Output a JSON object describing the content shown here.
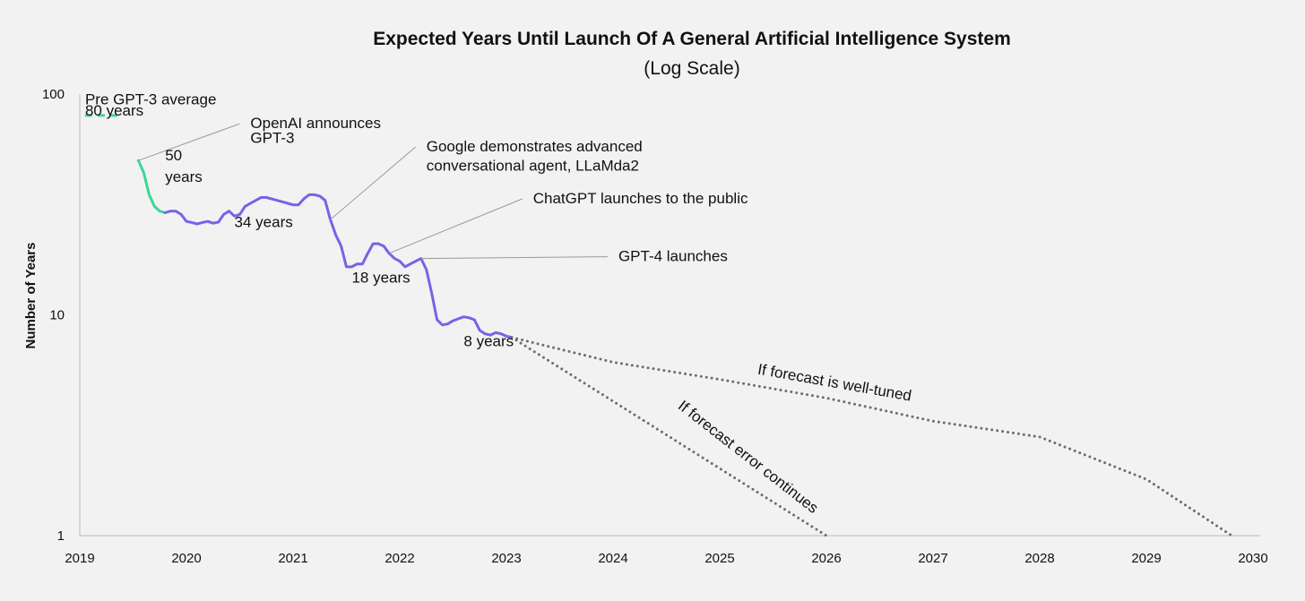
{
  "chart_data": {
    "type": "line",
    "title": "Expected Years Until Launch Of A General Artificial Intelligence System",
    "subtitle": "(Log Scale)",
    "ylabel": "Number of Years",
    "xlabel": "",
    "xlim": [
      2019,
      2030
    ],
    "ylim": [
      1,
      100
    ],
    "y_scale": "log",
    "grid": false,
    "x_ticks": [
      "2019",
      "2020",
      "2021",
      "2022",
      "2023",
      "2024",
      "2025",
      "2026",
      "2027",
      "2028",
      "2029",
      "2030"
    ],
    "y_ticks": [
      "1",
      "10",
      "100"
    ],
    "colors": {
      "pre_gpt3": "#3ed598",
      "forecast": "#7b61e6",
      "projection": "#6b6b75",
      "axis": "#bbbbbb",
      "leader": "#999999",
      "text": "#111111"
    },
    "series": [
      {
        "key": "pre_gpt3_average",
        "style": "dashed",
        "points": [
          [
            2019.05,
            80
          ],
          [
            2019.38,
            80
          ]
        ]
      },
      {
        "key": "after_gpt3_announcement",
        "style": "solid",
        "points": [
          [
            2019.55,
            50
          ],
          [
            2019.6,
            44
          ],
          [
            2019.65,
            35
          ],
          [
            2019.7,
            31
          ],
          [
            2019.75,
            29.5
          ],
          [
            2019.8,
            29
          ]
        ]
      },
      {
        "key": "forecast",
        "style": "solid",
        "points": [
          [
            2019.8,
            29
          ],
          [
            2019.85,
            29.5
          ],
          [
            2019.9,
            29.5
          ],
          [
            2019.95,
            28.5
          ],
          [
            2020.0,
            26.5
          ],
          [
            2020.05,
            26.2
          ],
          [
            2020.1,
            25.8
          ],
          [
            2020.15,
            26.2
          ],
          [
            2020.2,
            26.5
          ],
          [
            2020.25,
            26
          ],
          [
            2020.3,
            26.3
          ],
          [
            2020.35,
            28.5
          ],
          [
            2020.4,
            29.5
          ],
          [
            2020.45,
            28
          ],
          [
            2020.5,
            28.5
          ],
          [
            2020.55,
            31
          ],
          [
            2020.6,
            32
          ],
          [
            2020.65,
            33
          ],
          [
            2020.7,
            34
          ],
          [
            2020.75,
            34
          ],
          [
            2020.8,
            33.5
          ],
          [
            2020.85,
            33
          ],
          [
            2020.9,
            32.5
          ],
          [
            2020.95,
            32
          ],
          [
            2021.0,
            31.5
          ],
          [
            2021.05,
            31.5
          ],
          [
            2021.1,
            33.5
          ],
          [
            2021.15,
            35
          ],
          [
            2021.2,
            35
          ],
          [
            2021.25,
            34.5
          ],
          [
            2021.3,
            33
          ],
          [
            2021.35,
            27
          ],
          [
            2021.4,
            23
          ],
          [
            2021.45,
            20.5
          ],
          [
            2021.5,
            16.5
          ],
          [
            2021.55,
            16.5
          ],
          [
            2021.6,
            17
          ],
          [
            2021.65,
            17
          ],
          [
            2021.7,
            19
          ],
          [
            2021.75,
            21
          ],
          [
            2021.8,
            21
          ],
          [
            2021.85,
            20.5
          ],
          [
            2021.9,
            19
          ],
          [
            2021.95,
            18
          ],
          [
            2022.0,
            17.5
          ],
          [
            2022.05,
            16.5
          ],
          [
            2022.1,
            17
          ],
          [
            2022.15,
            17.5
          ],
          [
            2022.2,
            18
          ],
          [
            2022.25,
            16
          ],
          [
            2022.3,
            12.5
          ],
          [
            2022.35,
            9.5
          ],
          [
            2022.4,
            9
          ],
          [
            2022.45,
            9.1
          ],
          [
            2022.5,
            9.4
          ],
          [
            2022.55,
            9.6
          ],
          [
            2022.6,
            9.8
          ],
          [
            2022.65,
            9.7
          ],
          [
            2022.7,
            9.5
          ],
          [
            2022.75,
            8.5
          ],
          [
            2022.8,
            8.2
          ],
          [
            2022.85,
            8.1
          ],
          [
            2022.9,
            8.3
          ],
          [
            2022.95,
            8.2
          ],
          [
            2023.0,
            8.0
          ],
          [
            2023.05,
            7.9
          ]
        ]
      },
      {
        "key": "well_tuned_projection",
        "style": "dotted",
        "points": [
          [
            2023.05,
            7.9
          ],
          [
            2024,
            6.1
          ],
          [
            2025,
            5.1
          ],
          [
            2026,
            4.2
          ],
          [
            2027,
            3.3
          ],
          [
            2028,
            2.8
          ],
          [
            2029,
            1.8
          ],
          [
            2029.8,
            1.0
          ]
        ]
      },
      {
        "key": "error_continues_projection",
        "style": "dotted",
        "points": [
          [
            2023.05,
            7.9
          ],
          [
            2026.0,
            1.0
          ]
        ]
      }
    ],
    "annotations": [
      {
        "key": "pre_gpt3_line1",
        "text": "Pre GPT-3 average",
        "x": 2019.05,
        "y": 90
      },
      {
        "key": "pre_gpt3_line2",
        "text": "80 years",
        "x": 2019.05,
        "y": 80
      },
      {
        "key": "openai_line1",
        "text": "OpenAI announces",
        "x": 2020.6,
        "y": 70,
        "anchor_x": 2019.55,
        "anchor_y": 50
      },
      {
        "key": "openai_line2",
        "text": "GPT-3",
        "x": 2020.6,
        "y": 60
      },
      {
        "key": "fifty_line1",
        "text": "50",
        "x": 2019.8,
        "y": 50
      },
      {
        "key": "fifty_line2",
        "text": "years",
        "x": 2019.8,
        "y": 40
      },
      {
        "key": "thirty_four",
        "text": "34 years",
        "x": 2020.45,
        "y": 25
      },
      {
        "key": "google_line1",
        "text": "Google demonstrates advanced",
        "x": 2022.25,
        "y": 55,
        "anchor_x": 2021.35,
        "anchor_y": 27
      },
      {
        "key": "google_line2",
        "text": "conversational agent, LLaMda2",
        "x": 2022.25,
        "y": 45
      },
      {
        "key": "chatgpt",
        "text": "ChatGPT launches to the public",
        "x": 2023.25,
        "y": 32,
        "anchor_x": 2021.9,
        "anchor_y": 19
      },
      {
        "key": "eighteen",
        "text": "18 years",
        "x": 2021.55,
        "y": 14
      },
      {
        "key": "gpt4",
        "text": "GPT-4 launches",
        "x": 2024.05,
        "y": 17.5,
        "anchor_x": 2022.2,
        "anchor_y": 18
      },
      {
        "key": "eight",
        "text": "8 years",
        "x": 2022.6,
        "y": 7.2
      },
      {
        "key": "well_tuned",
        "text": "If forecast is well-tuned",
        "x": 2025.35,
        "y": 5.4,
        "angle": 10
      },
      {
        "key": "error_continues",
        "text": "If forecast error continues",
        "x": 2024.6,
        "y": 3.8,
        "angle": 38
      }
    ]
  }
}
